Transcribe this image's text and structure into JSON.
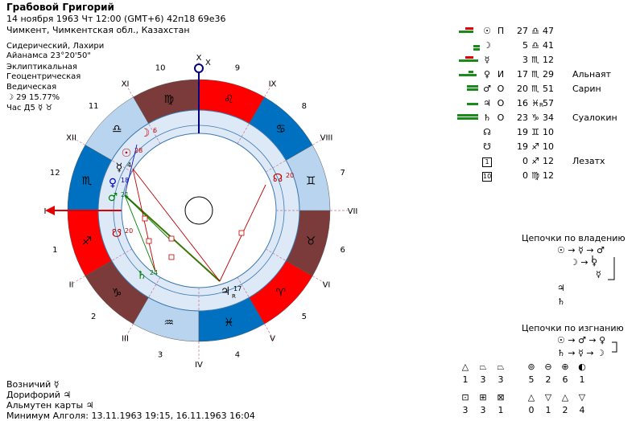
{
  "header": {
    "name": "Грабовой Григорий",
    "datetime": "14 ноября 1963  Чт  12:00 (GMT+6) 42п18  69е36",
    "place": "Чимкент, Чимкентская обл., Казахстан"
  },
  "meta": [
    "Сидерический, Лахири",
    "Айанамса 23°20'50\"",
    "Эклиптикальная",
    "Геоцентрическая",
    "Ведическая",
    "☽  29 15.77%",
    "Час Д5 ☿ ♉"
  ],
  "houses": {
    "cusps": [
      "I",
      "II",
      "III",
      "IV",
      "V",
      "VI",
      "VII",
      "VIII",
      "IX",
      "X",
      "XI",
      "XII"
    ],
    "signs_numbers": [
      "1",
      "2",
      "3",
      "4",
      "5",
      "6",
      "7",
      "8",
      "9",
      "10",
      "11",
      "12"
    ],
    "sign_glyphs": [
      "♐",
      "♑",
      "♒",
      "♓",
      "♈",
      "♉",
      "♊",
      "♋",
      "♌",
      "♍",
      "♎",
      "♏"
    ],
    "top_label": "X"
  },
  "chart_planets": [
    {
      "glyph": "☽",
      "deg": "6",
      "color": "#c00000"
    },
    {
      "glyph": "☉",
      "deg": "28",
      "color": "#c00000"
    },
    {
      "glyph": "☿",
      "deg": "4",
      "color": "#000000"
    },
    {
      "glyph": "♀",
      "deg": "18",
      "color": "#0000c0"
    },
    {
      "glyph": "♂",
      "deg": "21",
      "color": "#008000"
    },
    {
      "glyph": "☋",
      "deg": "20",
      "color": "#c00000"
    },
    {
      "glyph": "☊",
      "deg": "20",
      "color": "#c00000"
    },
    {
      "glyph": "♄",
      "deg": "24",
      "color": "#008000"
    },
    {
      "glyph": "♃",
      "deg": "17",
      "color": "#000000",
      "retro": "R"
    }
  ],
  "planet_table": [
    {
      "sym": "☉",
      "sgn": "П",
      "deg": "27",
      "zsg": "♎",
      "min": "47",
      "nm": "",
      "bars": [
        {
          "c": "#e00000",
          "w": 10,
          "y": 0,
          "x": 12
        },
        {
          "c": "#1a8a1a",
          "w": 18,
          "y": 4,
          "x": 4
        }
      ]
    },
    {
      "sym": "☽",
      "sgn": "",
      "deg": "5",
      "zsg": "♎",
      "min": "41",
      "nm": "",
      "bars": [
        {
          "c": "#1a8a1a",
          "w": 8,
          "y": 4,
          "x": 22
        },
        {
          "c": "#1a8a1a",
          "w": 8,
          "y": 8,
          "x": 22
        }
      ]
    },
    {
      "sym": "☿",
      "sgn": "",
      "deg": "3",
      "zsg": "♏",
      "min": "12",
      "nm": "",
      "bars": [
        {
          "c": "#e00000",
          "w": 10,
          "y": 0,
          "x": 12
        },
        {
          "c": "#1a8a1a",
          "w": 24,
          "y": 4,
          "x": 4
        }
      ]
    },
    {
      "sym": "♀",
      "sgn": "И",
      "deg": "17",
      "zsg": "♏",
      "min": "29",
      "nm": "Альнаят",
      "bars": [
        {
          "c": "#1a8a1a",
          "w": 6,
          "y": 0,
          "x": 16
        },
        {
          "c": "#1a8a1a",
          "w": 22,
          "y": 4,
          "x": 4
        }
      ]
    },
    {
      "sym": "♂",
      "sgn": "О",
      "deg": "20",
      "zsg": "♏",
      "min": "51",
      "nm": "Сарин",
      "bars": [
        {
          "c": "#1a8a1a",
          "w": 14,
          "y": 0,
          "x": 14
        },
        {
          "c": "#1a8a1a",
          "w": 14,
          "y": 4,
          "x": 14
        }
      ]
    },
    {
      "sym": "♃",
      "sgn": "О",
      "deg": "16",
      "zsg": "♓",
      "min": "57",
      "nm": "",
      "retro": "R",
      "bars": [
        {
          "c": "#1a8a1a",
          "w": 14,
          "y": 4,
          "x": 14
        }
      ]
    },
    {
      "sym": "♄",
      "sgn": "О",
      "deg": "23",
      "zsg": "♑",
      "min": "34",
      "nm": "Суалокин",
      "bars": [
        {
          "c": "#1a8a1a",
          "w": 26,
          "y": 0,
          "x": 2
        },
        {
          "c": "#1a8a1a",
          "w": 26,
          "y": 4,
          "x": 2
        }
      ]
    },
    {
      "sym": "☊",
      "sgn": "",
      "deg": "19",
      "zsg": "♊",
      "min": "10",
      "nm": "",
      "bars": []
    },
    {
      "sym": "☋",
      "sgn": "",
      "deg": "19",
      "zsg": "♐",
      "min": "10",
      "nm": "",
      "bars": []
    },
    {
      "sym": "1",
      "box": true,
      "sgn": "",
      "deg": "0",
      "zsg": "♐",
      "min": "12",
      "nm": "Лезатх",
      "bars": []
    },
    {
      "sym": "10",
      "box": true,
      "sgn": "",
      "deg": "0",
      "zsg": "♍",
      "min": "12",
      "nm": "",
      "bars": []
    }
  ],
  "chains": {
    "owner_title": "Цепочки по владению",
    "owner_rows": [
      "☉ → ☿ → ♂",
      "☽ → ♀",
      "☿"
    ],
    "owner_extra": [
      "♃",
      "♄"
    ],
    "exile_title": "Цепочки по изгнанию",
    "exile_rows": [
      "☉ → ♂ → ♀",
      "♄ → ☿ → ☽"
    ]
  },
  "bottom": {
    "lines": [
      "Возничий  ☿",
      "Дорифорий  ♃",
      "Альмутен карты  ♃",
      "Минимум Алголя: 13.11.1963 19:15,  16.11.1963 16:04"
    ]
  },
  "aspect_stats": {
    "row1": {
      "symbols": [
        "△",
        "⏢",
        "⏢"
      ],
      "counts": [
        "1",
        "3",
        "3"
      ]
    },
    "row2": {
      "symbols": [
        "⊡",
        "⊞",
        "⊠"
      ],
      "counts": [
        "3",
        "3",
        "1"
      ]
    },
    "row3": {
      "symbols": [
        "⊚",
        "⊖",
        "⊕",
        "◐"
      ],
      "counts": [
        "5",
        "2",
        "6",
        "1"
      ]
    },
    "row4": {
      "symbols": [
        "△",
        "▽",
        "△",
        "▽"
      ],
      "counts": [
        "0",
        "1",
        "2",
        "4"
      ]
    }
  },
  "colors": {
    "red": "#ff0000",
    "blue": "#0070c0",
    "brown": "#7b3b3b",
    "lightblue": "#b8d4ee",
    "ringblue": "#dde9f6",
    "green": "#008000",
    "darkred": "#c00000"
  }
}
